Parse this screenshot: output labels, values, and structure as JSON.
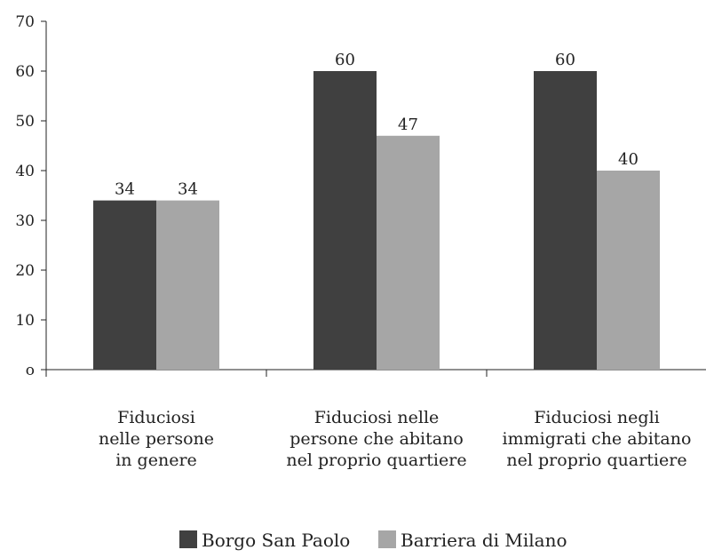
{
  "chart_data": {
    "type": "bar",
    "title": "",
    "xlabel": "",
    "ylabel": "",
    "ylim": [
      0,
      70
    ],
    "yticks": [
      0,
      10,
      20,
      30,
      40,
      50,
      60,
      70
    ],
    "ytick_labels": [
      "o",
      "10",
      "20",
      "30",
      "40",
      "50",
      "60",
      "70"
    ],
    "grid": false,
    "legend_position": "bottom",
    "categories": [
      [
        "Fiduciosi",
        "nelle persone",
        "in genere"
      ],
      [
        "Fiduciosi nelle",
        "persone che abitano",
        "nel proprio quartiere"
      ],
      [
        "Fiduciosi negli",
        "immigrati che abitano",
        "nel proprio quartiere"
      ]
    ],
    "series": [
      {
        "name": "Borgo San Paolo",
        "values": [
          34,
          60,
          60
        ],
        "color": "#404040"
      },
      {
        "name": "Barriera di Milano",
        "values": [
          34,
          47,
          40
        ],
        "color": "#a6a6a6"
      }
    ]
  }
}
